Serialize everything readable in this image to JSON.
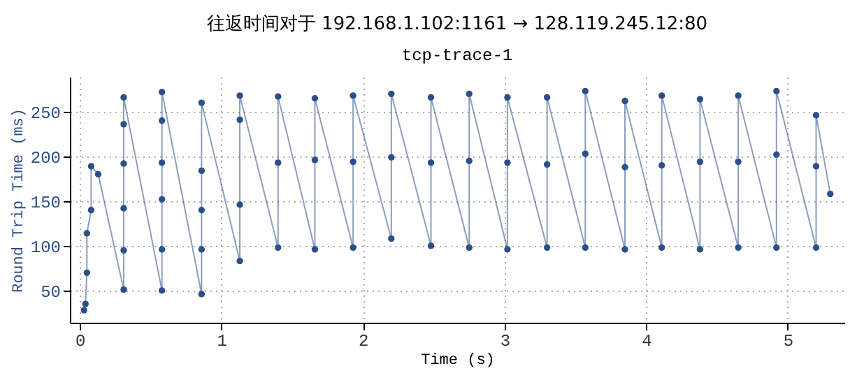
{
  "chart_data": {
    "type": "line",
    "title": "往返时间对于 192.168.1.102:1161 → 128.119.245.12:80",
    "subtitle": "tcp-trace-1",
    "xlabel": "Time (s)",
    "ylabel": "Round Trip Time (ms)",
    "x": [
      0.03,
      0.04,
      0.05,
      0.05,
      0.08,
      0.08,
      0.13,
      0.31,
      0.31,
      0.31,
      0.31,
      0.31,
      0.31,
      0.58,
      0.58,
      0.58,
      0.58,
      0.58,
      0.58,
      0.86,
      0.86,
      0.86,
      0.86,
      0.86,
      1.13,
      1.13,
      1.13,
      1.13,
      1.4,
      1.4,
      1.4,
      1.66,
      1.66,
      1.66,
      1.93,
      1.93,
      1.93,
      2.2,
      2.2,
      2.2,
      2.48,
      2.48,
      2.48,
      2.75,
      2.75,
      2.75,
      3.02,
      3.02,
      3.02,
      3.3,
      3.3,
      3.3,
      3.57,
      3.57,
      3.57,
      3.85,
      3.85,
      3.85,
      4.11,
      4.11,
      4.11,
      4.38,
      4.38,
      4.38,
      4.65,
      4.65,
      4.65,
      4.92,
      4.92,
      4.92,
      5.2,
      5.2,
      5.2,
      5.3
    ],
    "series": [
      {
        "color": "#2c4f8a",
        "values": [
          28,
          35,
          70,
          114,
          140,
          189,
          180,
          51,
          95,
          142,
          192,
          236,
          266,
          50,
          96,
          152,
          193,
          240,
          272,
          46,
          96,
          140,
          184,
          260,
          83,
          146,
          241,
          268,
          98,
          193,
          267,
          96,
          196,
          265,
          98,
          194,
          268,
          108,
          199,
          270,
          100,
          193,
          266,
          98,
          195,
          270,
          96,
          193,
          266,
          98,
          191,
          266,
          98,
          203,
          273,
          96,
          188,
          262,
          98,
          190,
          268,
          96,
          194,
          264,
          98,
          194,
          268,
          98,
          202,
          273,
          98,
          189,
          246,
          158
        ]
      }
    ],
    "xlim": [
      -0.07,
      5.4
    ],
    "ylim": [
      14,
      289
    ],
    "xticks": [
      0,
      1,
      2,
      3,
      4,
      5
    ],
    "yticks": [
      50,
      100,
      150,
      200,
      250
    ],
    "grid": true,
    "marker": "circle",
    "line_style": "solid",
    "legend": false
  }
}
